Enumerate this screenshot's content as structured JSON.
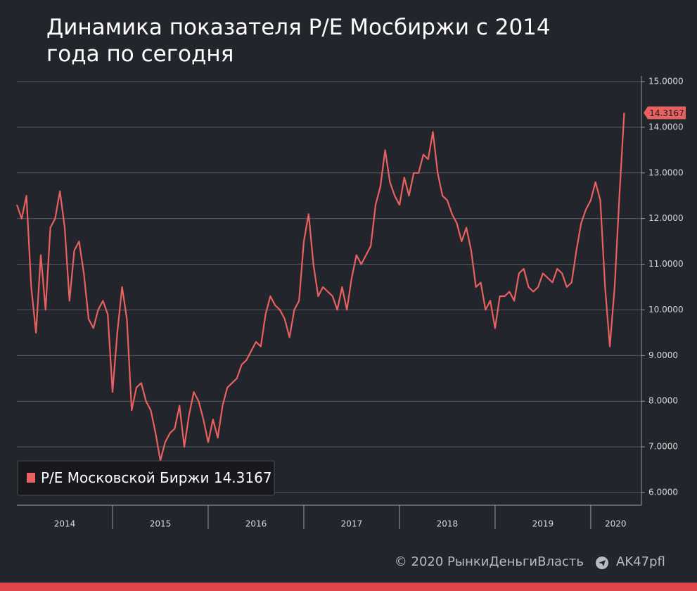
{
  "chart_data": {
    "type": "line",
    "title": "Динамика показателя P/E Мосбиржи с 2014 года по сегодня",
    "x": [
      2014.0,
      2014.05,
      2014.1,
      2014.15,
      2014.2,
      2014.25,
      2014.3,
      2014.35,
      2014.4,
      2014.45,
      2014.5,
      2014.55,
      2014.6,
      2014.65,
      2014.7,
      2014.75,
      2014.8,
      2014.85,
      2014.9,
      2014.95,
      2015.0,
      2015.05,
      2015.1,
      2015.15,
      2015.2,
      2015.25,
      2015.3,
      2015.35,
      2015.4,
      2015.45,
      2015.5,
      2015.55,
      2015.6,
      2015.65,
      2015.7,
      2015.75,
      2015.8,
      2015.85,
      2015.9,
      2015.95,
      2016.0,
      2016.05,
      2016.1,
      2016.15,
      2016.2,
      2016.25,
      2016.3,
      2016.35,
      2016.4,
      2016.45,
      2016.5,
      2016.55,
      2016.6,
      2016.65,
      2016.7,
      2016.75,
      2016.8,
      2016.85,
      2016.9,
      2016.95,
      2017.0,
      2017.05,
      2017.1,
      2017.15,
      2017.2,
      2017.25,
      2017.3,
      2017.35,
      2017.4,
      2017.45,
      2017.5,
      2017.55,
      2017.6,
      2017.65,
      2017.7,
      2017.75,
      2017.8,
      2017.85,
      2017.9,
      2017.95,
      2018.0,
      2018.05,
      2018.1,
      2018.15,
      2018.2,
      2018.25,
      2018.3,
      2018.35,
      2018.4,
      2018.45,
      2018.5,
      2018.55,
      2018.6,
      2018.65,
      2018.7,
      2018.75,
      2018.8,
      2018.85,
      2018.9,
      2018.95,
      2019.0,
      2019.05,
      2019.1,
      2019.15,
      2019.2,
      2019.25,
      2019.3,
      2019.35,
      2019.4,
      2019.45,
      2019.5,
      2019.55,
      2019.6,
      2019.65,
      2019.7,
      2019.75,
      2019.8,
      2019.85,
      2019.9,
      2019.95,
      2020.0,
      2020.05,
      2020.1,
      2020.15,
      2020.2,
      2020.25,
      2020.3,
      2020.35
    ],
    "series": [
      {
        "name": "P/E Московской Биржи",
        "color": "#e8605f",
        "values": [
          12.3,
          12.0,
          12.5,
          10.5,
          9.5,
          11.2,
          10.0,
          11.8,
          12.0,
          12.6,
          11.8,
          10.2,
          11.3,
          11.5,
          10.8,
          9.8,
          9.6,
          10.0,
          10.2,
          9.9,
          8.2,
          9.5,
          10.5,
          9.8,
          7.8,
          8.3,
          8.4,
          8.0,
          7.8,
          7.3,
          6.7,
          7.1,
          7.3,
          7.4,
          7.9,
          7.0,
          7.7,
          8.2,
          8.0,
          7.6,
          7.1,
          7.6,
          7.2,
          7.9,
          8.3,
          8.4,
          8.5,
          8.8,
          8.9,
          9.1,
          9.3,
          9.2,
          9.9,
          10.3,
          10.1,
          10.0,
          9.8,
          9.4,
          10.0,
          10.2,
          11.5,
          12.1,
          11.0,
          10.3,
          10.5,
          10.4,
          10.3,
          10.0,
          10.5,
          10.0,
          10.7,
          11.2,
          11.0,
          11.2,
          11.4,
          12.3,
          12.7,
          13.5,
          12.8,
          12.5,
          12.3,
          12.9,
          12.5,
          13.0,
          13.0,
          13.4,
          13.3,
          13.9,
          13.0,
          12.5,
          12.4,
          12.1,
          11.9,
          11.5,
          11.8,
          11.3,
          10.5,
          10.6,
          10.0,
          10.2,
          9.6,
          10.3,
          10.3,
          10.4,
          10.2,
          10.8,
          10.9,
          10.5,
          10.4,
          10.5,
          10.8,
          10.7,
          10.6,
          10.9,
          10.8,
          10.5,
          10.6,
          11.3,
          11.9,
          12.2,
          12.4,
          12.8,
          12.4,
          10.5,
          9.2,
          10.5,
          12.5,
          14.3167
        ]
      }
    ],
    "xlim": [
      2014.0,
      2020.53
    ],
    "xticks": [
      {
        "value": 2014.5,
        "label": "2014"
      },
      {
        "value": 2015.5,
        "label": "2015"
      },
      {
        "value": 2016.5,
        "label": "2016"
      },
      {
        "value": 2017.5,
        "label": "2017"
      },
      {
        "value": 2018.5,
        "label": "2018"
      },
      {
        "value": 2019.5,
        "label": "2019"
      },
      {
        "value": 2020.26,
        "label": "2020"
      }
    ],
    "ylim": [
      6.0,
      15.0
    ],
    "yticks": [
      {
        "value": 6,
        "label": "6.0000"
      },
      {
        "value": 7,
        "label": "7.0000"
      },
      {
        "value": 8,
        "label": "8.0000"
      },
      {
        "value": 9,
        "label": "9.0000"
      },
      {
        "value": 10,
        "label": "10.0000"
      },
      {
        "value": 11,
        "label": "11.0000"
      },
      {
        "value": 12,
        "label": "12.0000"
      },
      {
        "value": 13,
        "label": "13.0000"
      },
      {
        "value": 14,
        "label": "14.0000"
      },
      {
        "value": 15,
        "label": "15.0000"
      }
    ],
    "grid": true,
    "legend": "lower-left"
  },
  "footer": {
    "copyright": "© 2020  РынкиДеньгиВласть",
    "handle": "AK47pfl"
  }
}
